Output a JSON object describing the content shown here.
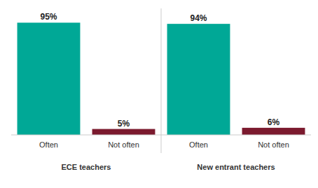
{
  "chart_data": [
    {
      "type": "bar",
      "xlabel": "ECE teachers",
      "categories": [
        "Often",
        "Not often"
      ],
      "values": [
        95,
        5
      ],
      "value_labels": [
        "95%",
        "5%"
      ],
      "colors": [
        "#00a896",
        "#7b1a2e"
      ],
      "ylim": [
        0,
        100
      ],
      "data_labels": true,
      "tick_labels": "x"
    },
    {
      "type": "bar",
      "xlabel": "New entrant teachers",
      "categories": [
        "Often",
        "Not often"
      ],
      "values": [
        94,
        6
      ],
      "value_labels": [
        "94%",
        "6%"
      ],
      "colors": [
        "#00a896",
        "#7b1a2e"
      ],
      "ylim": [
        0,
        100
      ],
      "data_labels": true,
      "tick_labels": "x"
    }
  ]
}
